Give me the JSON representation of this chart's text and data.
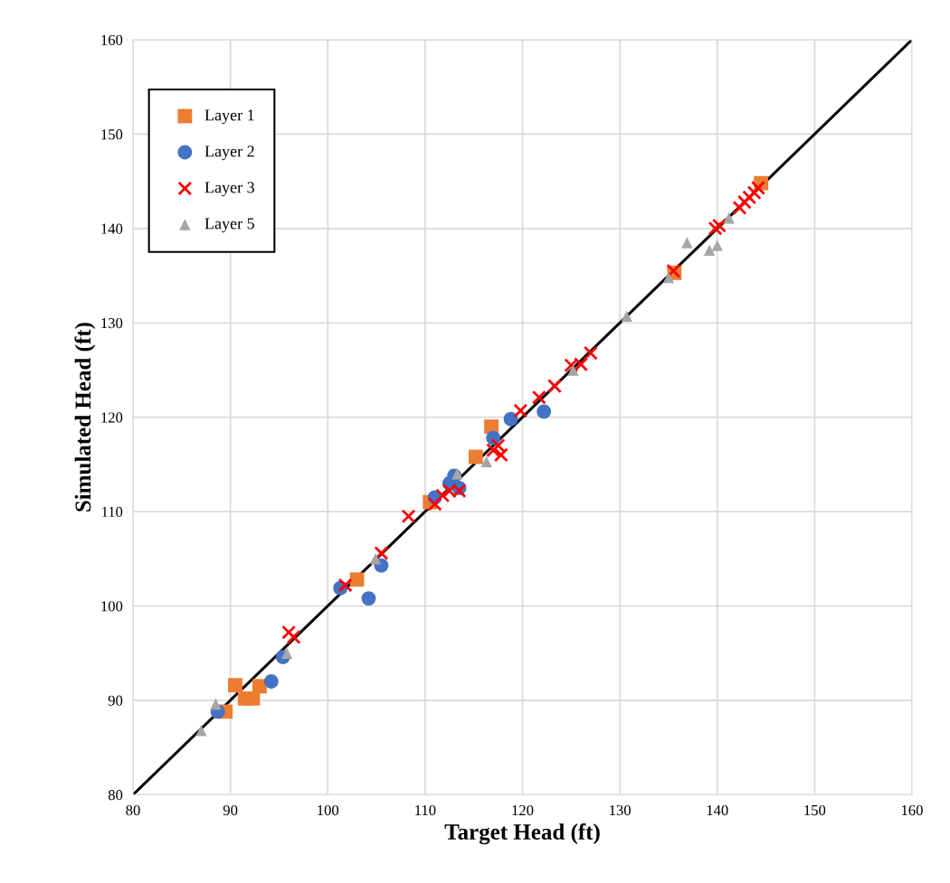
{
  "chart_data": {
    "type": "scatter",
    "xlabel": "Target Head (ft)",
    "ylabel": "Simulated Head (ft)",
    "xlim": [
      80,
      160
    ],
    "ylim": [
      80,
      160
    ],
    "xticks": [
      80,
      90,
      100,
      110,
      120,
      130,
      140,
      150,
      160
    ],
    "yticks": [
      80,
      90,
      100,
      110,
      120,
      130,
      140,
      150,
      160
    ],
    "grid": true,
    "legend": "top left",
    "series": [
      {
        "name": "Layer 1",
        "color": "#ed7d31",
        "marker": "square",
        "x": [
          89.5,
          90.5,
          91.5,
          92.3,
          93,
          103,
          110.5,
          115.2,
          116.8,
          135.6,
          144.5
        ],
        "values": [
          88.8,
          91.6,
          90.2,
          90.2,
          91.5,
          102.8,
          111,
          115.8,
          119,
          135.3,
          144.8
        ]
      },
      {
        "name": "Layer 2",
        "color": "#4472c4",
        "marker": "circle",
        "x": [
          88.7,
          94.2,
          95.4,
          101.3,
          104.2,
          105.5,
          111,
          112.5,
          113,
          113.5,
          117,
          118.8,
          122.2
        ],
        "values": [
          88.8,
          92,
          94.6,
          101.9,
          100.8,
          104.3,
          111.5,
          113,
          113.8,
          112.5,
          117.8,
          119.8,
          120.6
        ]
      },
      {
        "name": "Layer 3",
        "color": "#ff0000",
        "marker": "cross",
        "x": [
          96,
          96.5,
          101.8,
          105.5,
          108.3,
          111,
          111.8,
          112.5,
          113.5,
          117,
          117.5,
          117.8,
          119.8,
          121.7,
          123.3,
          125,
          126,
          127,
          135.5,
          139.8,
          140.2,
          142.3,
          142.8,
          143.3,
          143.8,
          144.2
        ],
        "values": [
          97.2,
          96.7,
          102.2,
          105.6,
          109.5,
          110.8,
          111.7,
          112.2,
          112.2,
          116.5,
          117,
          116,
          120.7,
          122.1,
          123.3,
          125.5,
          125.6,
          126.8,
          135.5,
          140,
          140.3,
          142.2,
          142.8,
          143.3,
          143.8,
          144.3
        ]
      },
      {
        "name": "Layer 5",
        "color": "#a5a5a5",
        "marker": "triangle",
        "x": [
          87,
          88.5,
          95.8,
          104.9,
          113.3,
          116.3,
          125.2,
          130.7,
          135,
          136.9,
          139.2,
          140,
          141.2
        ],
        "values": [
          86.8,
          89.6,
          95,
          105,
          114,
          115.3,
          125,
          130.7,
          134.8,
          138.5,
          137.7,
          138.2,
          141.1
        ]
      },
      {
        "type": "line",
        "color": "#000000",
        "marker": "none",
        "x": [
          80,
          160
        ],
        "values": [
          80,
          160
        ]
      }
    ]
  }
}
